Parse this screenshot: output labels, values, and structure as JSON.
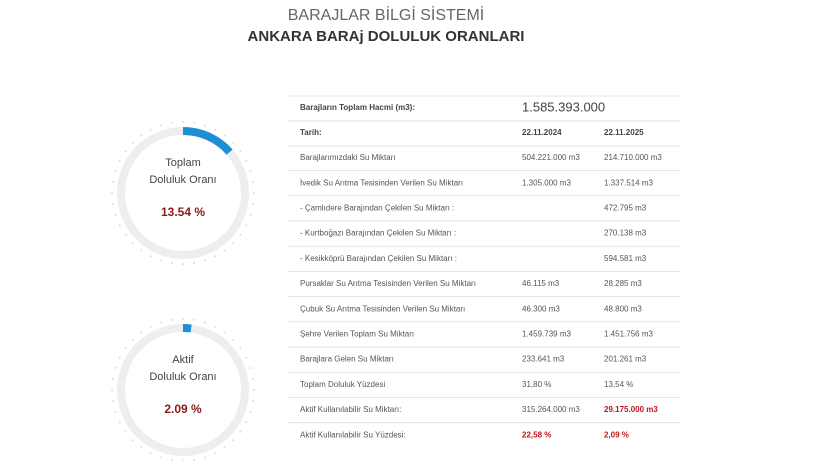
{
  "header": {
    "title": "BARAJLAR BİLGİ SİSTEMİ",
    "subtitle": "ANKARA BARAj DOLULUK ORANLARI"
  },
  "gauges": [
    {
      "lines": [
        "Toplam",
        "Doluluk Oranı"
      ],
      "value": 13.54,
      "value_label": "13.54 %",
      "color": "#1e8fd5"
    },
    {
      "lines": [
        "Aktif",
        "Doluluk Oranı"
      ],
      "value": 2.09,
      "value_label": "2.09 %",
      "color": "#1e8fd5"
    }
  ],
  "table": {
    "total": [
      "Barajların Toplam Hacmi (m3):",
      "1.585.393.000"
    ],
    "dates": [
      "Tarih:",
      "22.11.2024",
      "22.11.2025"
    ],
    "rows": [
      [
        "Barajlarımızdaki Su Miktarı",
        "504.221.000 m3",
        "214.710.000 m3"
      ],
      [
        "İvedik Su Arıtma Tesisinden Verilen Su Miktarı",
        "1.305.000 m3",
        "1.337.514 m3"
      ],
      [
        "- Çamlıdere Barajından Çekilen Su Miktarı :",
        null,
        "472.795 m3"
      ],
      [
        "- Kurtboğazı Barajından Çekilen Su Miktarı :",
        null,
        "270.138 m3"
      ],
      [
        "- Kesikköprü Barajından Çekilen Su Miktarı :",
        null,
        "594.581 m3"
      ],
      [
        "Pursaklar Su Arıtma Tesisinden Verilen Su Miktarı",
        "46.115 m3",
        "28.285 m3"
      ],
      [
        "Çubuk Su Arıtma Tesisinden Verilen Su Miktarı",
        "46.300 m3",
        "48.800 m3"
      ],
      [
        "Şehre Verilen Toplam Su Miktarı",
        "1.459.739 m3",
        "1.451.756 m3"
      ],
      [
        "Barajlara Gelen Su Miktarı",
        "233.641 m3",
        "201.261 m3"
      ],
      [
        "Toplam Doluluk Yüzdesi",
        "31,80 %",
        "13,54 %"
      ],
      [
        "Aktif Kullanılabilir Su Miktarı:",
        "315.264.000 m3",
        "29.175.000 m3"
      ],
      [
        "Aktif Kullanılabilir Su Yüzdesi:",
        "22,58 %",
        "2,09 %"
      ]
    ]
  }
}
